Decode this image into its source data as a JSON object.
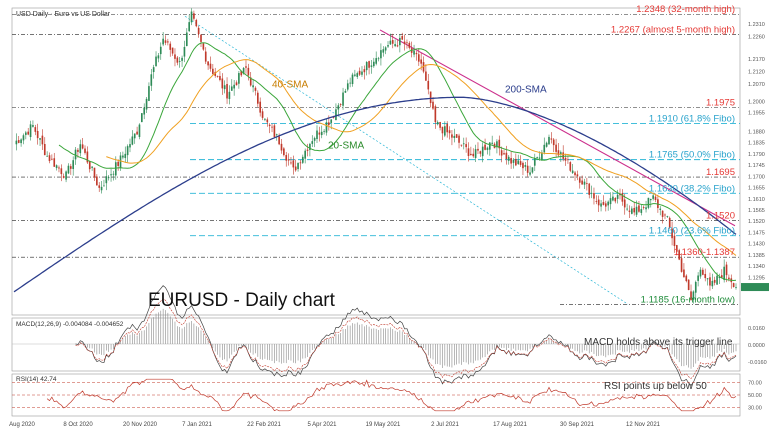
{
  "chart_data": {
    "type": "candlestick",
    "header": "USD Daily · Euro vs US Dollar",
    "title": "EURUSD - Daily chart",
    "colors": {
      "up": "#2e8b57",
      "down": "#c0392b",
      "sma20": "#3aa63a",
      "sma40": "#f0a020",
      "sma200": "#2c3e8c",
      "trend": "#cc2f8c",
      "fibo": "#29b6d6",
      "level_label": "#e53935",
      "fibo_label": "#29a3cc",
      "low_label": "#1f8c3a"
    },
    "x_labels": [
      "Aug 2020",
      "8 Oct 2020",
      "20 Nov 2020",
      "7 Jan 2021",
      "22 Feb 2021",
      "5 Apr 2021",
      "19 May 2021",
      "2 Jul 2021",
      "17 Aug 2021",
      "30 Sep 2021",
      "12 Nov 2021"
    ],
    "price_axis": {
      "ylim": [
        1.115,
        1.2365
      ],
      "ticks": [
        "1.2310",
        "1.2260",
        "1.2170",
        "1.2120",
        "1.2070",
        "1.2000",
        "1.1955",
        "1.1880",
        "1.1835",
        "1.1790",
        "1.1745",
        "1.1700",
        "1.1655",
        "1.1610",
        "1.1565",
        "1.1520",
        "1.1475",
        "1.1430",
        "1.1385",
        "1.1340",
        "1.1295",
        "1.1250"
      ]
    },
    "key_levels": [
      {
        "label": "1.2348 (32-month high)",
        "value": 1.2348,
        "kind": "resistance"
      },
      {
        "label": "1.2267 (almost 5-month high)",
        "value": 1.2267,
        "kind": "resistance"
      },
      {
        "label": "1.1975",
        "value": 1.1975,
        "kind": "resistance"
      },
      {
        "label": "1.1910 (61.8% Fibo)",
        "value": 1.191,
        "kind": "fibo"
      },
      {
        "label": "1.1765 (50.0% Fibo)",
        "value": 1.1765,
        "kind": "fibo"
      },
      {
        "label": "1.1695",
        "value": 1.1695,
        "kind": "resistance"
      },
      {
        "label": "1.1630 (38.2% Fibo)",
        "value": 1.163,
        "kind": "fibo"
      },
      {
        "label": "1.1520",
        "value": 1.152,
        "kind": "resistance"
      },
      {
        "label": "1.1460 (23.6% Fibo)",
        "value": 1.146,
        "kind": "fibo"
      },
      {
        "label": "1.1360-1.1387",
        "value": 1.1374,
        "kind": "resistance"
      },
      {
        "label": "1.1185 (16-month low)",
        "value": 1.1185,
        "kind": "support"
      }
    ],
    "indicator_labels": {
      "sma20": "20-SMA",
      "sma40": "40-SMA",
      "sma200": "200-SMA"
    },
    "macd": {
      "header": "MACD(12,26,9) -0.004084 -0.004652",
      "note": "MACD holds above its trigger line",
      "ticks": [
        "0.0160",
        "0.0000",
        "-0.0160"
      ]
    },
    "rsi": {
      "header": "RSI(14) 42.74",
      "note": "RSI points up below 50",
      "ticks": [
        "70.00",
        "50.00",
        "30.00"
      ]
    },
    "ohlc_anchors": [
      {
        "t": 0,
        "c": 1.183
      },
      {
        "t": 8,
        "c": 1.19
      },
      {
        "t": 14,
        "c": 1.178
      },
      {
        "t": 22,
        "c": 1.17
      },
      {
        "t": 28,
        "c": 1.183
      },
      {
        "t": 36,
        "c": 1.165
      },
      {
        "t": 44,
        "c": 1.175
      },
      {
        "t": 52,
        "c": 1.188
      },
      {
        "t": 58,
        "c": 1.21
      },
      {
        "t": 63,
        "c": 1.225
      },
      {
        "t": 70,
        "c": 1.215
      },
      {
        "t": 75,
        "c": 1.234
      },
      {
        "t": 82,
        "c": 1.215
      },
      {
        "t": 90,
        "c": 1.203
      },
      {
        "t": 98,
        "c": 1.213
      },
      {
        "t": 106,
        "c": 1.192
      },
      {
        "t": 112,
        "c": 1.184
      },
      {
        "t": 118,
        "c": 1.172
      },
      {
        "t": 126,
        "c": 1.185
      },
      {
        "t": 134,
        "c": 1.193
      },
      {
        "t": 142,
        "c": 1.208
      },
      {
        "t": 150,
        "c": 1.215
      },
      {
        "t": 157,
        "c": 1.222
      },
      {
        "t": 164,
        "c": 1.224
      },
      {
        "t": 172,
        "c": 1.215
      },
      {
        "t": 178,
        "c": 1.191
      },
      {
        "t": 186,
        "c": 1.185
      },
      {
        "t": 194,
        "c": 1.178
      },
      {
        "t": 202,
        "c": 1.184
      },
      {
        "t": 210,
        "c": 1.176
      },
      {
        "t": 218,
        "c": 1.172
      },
      {
        "t": 226,
        "c": 1.186
      },
      {
        "t": 232,
        "c": 1.177
      },
      {
        "t": 240,
        "c": 1.168
      },
      {
        "t": 248,
        "c": 1.158
      },
      {
        "t": 256,
        "c": 1.161
      },
      {
        "t": 262,
        "c": 1.155
      },
      {
        "t": 270,
        "c": 1.161
      },
      {
        "t": 276,
        "c": 1.152
      },
      {
        "t": 282,
        "c": 1.133
      },
      {
        "t": 286,
        "c": 1.12
      },
      {
        "t": 290,
        "c": 1.134
      },
      {
        "t": 294,
        "c": 1.125
      },
      {
        "t": 300,
        "c": 1.132
      },
      {
        "t": 305,
        "c": 1.126
      }
    ]
  }
}
